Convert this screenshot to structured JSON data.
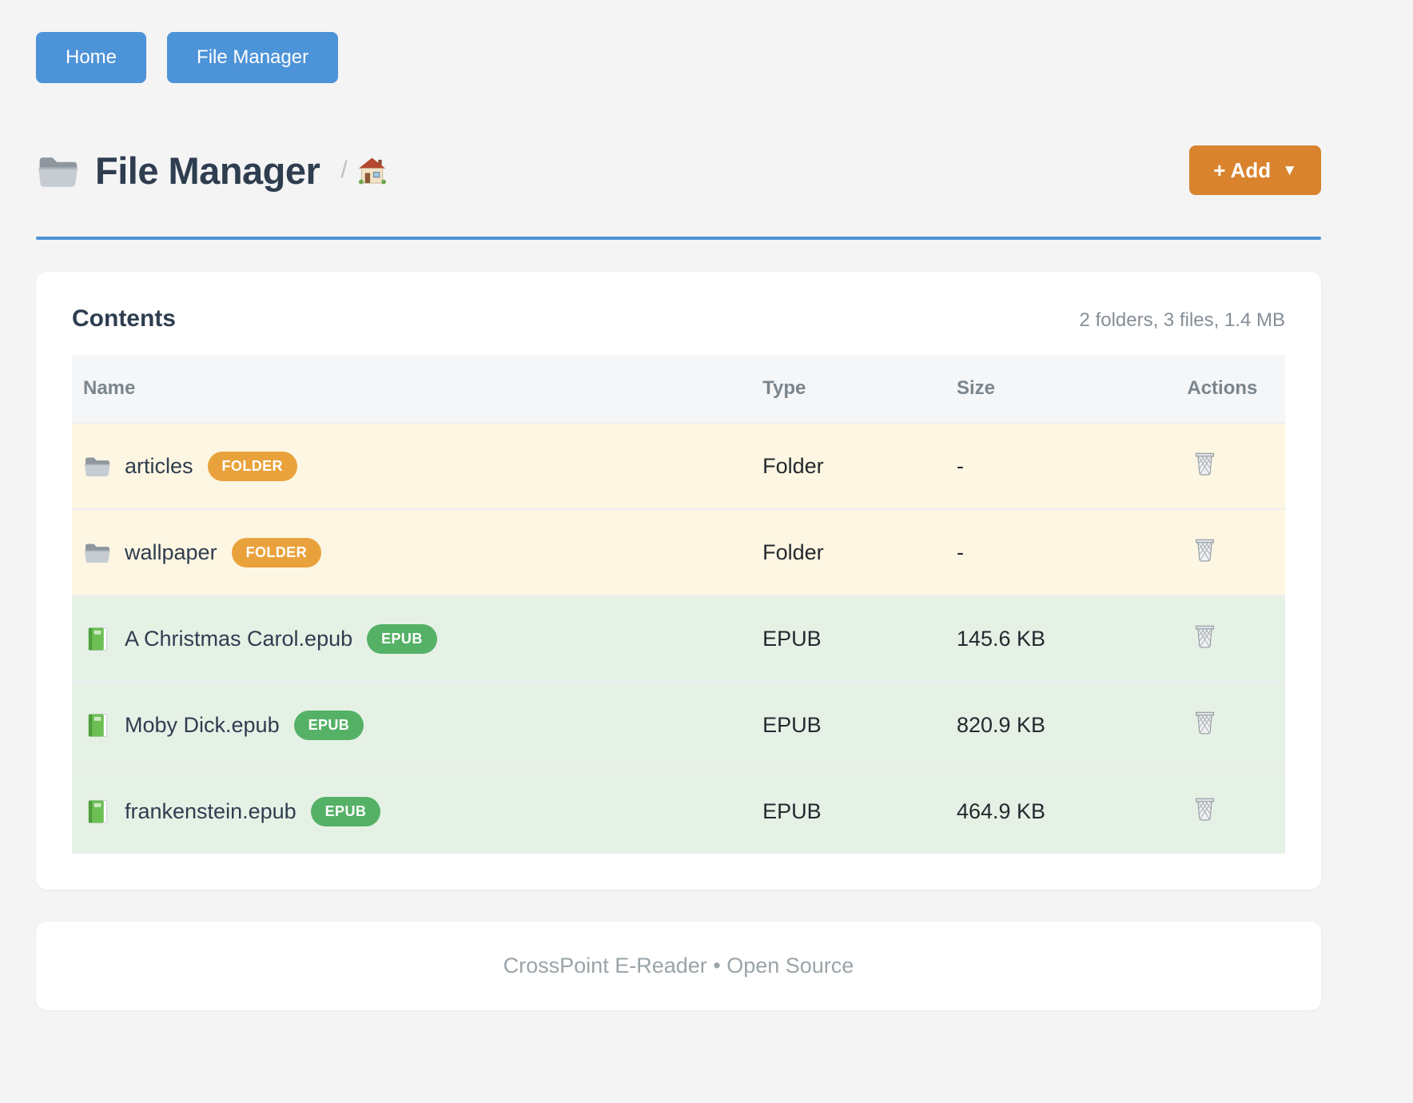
{
  "nav": {
    "home_label": "Home",
    "file_manager_label": "File Manager"
  },
  "header": {
    "title": "File Manager",
    "title_icon": "folder-icon",
    "breadcrumb_separator": "/",
    "breadcrumb_home_icon": "house-icon",
    "add_button_label": "+ Add",
    "add_button_caret": "▼"
  },
  "card": {
    "title": "Contents",
    "summary": "2 folders, 3 files, 1.4 MB"
  },
  "table": {
    "columns": [
      "Name",
      "Type",
      "Size",
      "Actions"
    ],
    "rows": [
      {
        "name": "articles",
        "icon": "folder-icon",
        "badge": "FOLDER",
        "kind": "folder",
        "type": "Folder",
        "size": "-",
        "action_icon": "trash-icon"
      },
      {
        "name": "wallpaper",
        "icon": "folder-icon",
        "badge": "FOLDER",
        "kind": "folder",
        "type": "Folder",
        "size": "-",
        "action_icon": "trash-icon"
      },
      {
        "name": "A Christmas Carol.epub",
        "icon": "book-icon",
        "badge": "EPUB",
        "kind": "epub",
        "type": "EPUB",
        "size": "145.6 KB",
        "action_icon": "trash-icon"
      },
      {
        "name": "Moby Dick.epub",
        "icon": "book-icon",
        "badge": "EPUB",
        "kind": "epub",
        "type": "EPUB",
        "size": "820.9 KB",
        "action_icon": "trash-icon"
      },
      {
        "name": "frankenstein.epub",
        "icon": "book-icon",
        "badge": "EPUB",
        "kind": "epub",
        "type": "EPUB",
        "size": "464.9 KB",
        "action_icon": "trash-icon"
      }
    ]
  },
  "footer": {
    "text": "CrossPoint E-Reader • Open Source"
  },
  "colors": {
    "blue": "#4D93D8",
    "orange": "#D9832E",
    "badge_folder": "#E9A23B",
    "badge_epub": "#55B166",
    "row_folder_bg": "#FDF6E2",
    "row_file_bg": "#E6F1E6",
    "header_row_bg": "#F4F6F8",
    "title_color": "#2E3D4F",
    "muted": "#868E96",
    "footer_text": "#9AA4A8",
    "page_bg": "#F4F4F4"
  }
}
